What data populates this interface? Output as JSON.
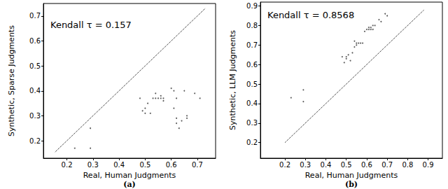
{
  "chart_data": [
    {
      "type": "scatter",
      "title": "(a)",
      "x_label": "Real, Human Judgments",
      "y_label": "Synthetic, Sparse Judgments",
      "annotations": [
        "Kendall τ = 0.157"
      ],
      "xlim": [
        0.11,
        0.77
      ],
      "ylim": [
        0.13,
        0.75
      ],
      "xticks": [
        0.2,
        0.3,
        0.4,
        0.5,
        0.6,
        0.7
      ],
      "yticks": [
        0.2,
        0.3,
        0.4,
        0.5,
        0.6,
        0.7
      ],
      "grid": false,
      "series": [
        {
          "type": "scatter",
          "marker": "circle",
          "color": "#333333",
          "x": [
            0.23,
            0.29,
            0.29,
            0.48,
            0.49,
            0.5,
            0.5,
            0.51,
            0.52,
            0.53,
            0.54,
            0.54,
            0.55,
            0.56,
            0.56,
            0.57,
            0.57,
            0.6,
            0.61,
            0.61,
            0.62,
            0.62,
            0.62,
            0.63,
            0.64,
            0.65,
            0.66,
            0.66,
            0.69,
            0.71
          ],
          "values": [
            0.17,
            0.25,
            0.17,
            0.37,
            0.32,
            0.33,
            0.31,
            0.35,
            0.31,
            0.37,
            0.39,
            0.37,
            0.37,
            0.38,
            0.37,
            0.36,
            0.37,
            0.41,
            0.4,
            0.33,
            0.37,
            0.29,
            0.27,
            0.25,
            0.28,
            0.4,
            0.3,
            0.29,
            0.39,
            0.37
          ]
        },
        {
          "type": "line",
          "line_style": "dotted",
          "color": "#000000",
          "x": [
            0.155,
            0.73
          ],
          "values": [
            0.155,
            0.73
          ]
        }
      ]
    },
    {
      "type": "scatter",
      "title": "(b)",
      "x_label": "Real, Human Judgments",
      "y_label": "Synthetic, LLM Judgments",
      "annotations": [
        "Kendall τ = 0.8568"
      ],
      "xlim": [
        0.08,
        0.97
      ],
      "ylim": [
        0.12,
        0.92
      ],
      "xticks": [
        0.2,
        0.3,
        0.4,
        0.5,
        0.6,
        0.7,
        0.8,
        0.9
      ],
      "yticks": [
        0.2,
        0.3,
        0.4,
        0.5,
        0.6,
        0.7,
        0.8,
        0.9
      ],
      "grid": false,
      "series": [
        {
          "type": "scatter",
          "marker": "circle",
          "color": "#333333",
          "x": [
            0.23,
            0.29,
            0.29,
            0.48,
            0.49,
            0.5,
            0.5,
            0.51,
            0.52,
            0.53,
            0.54,
            0.54,
            0.55,
            0.55,
            0.56,
            0.57,
            0.58,
            0.59,
            0.6,
            0.61,
            0.61,
            0.62,
            0.62,
            0.63,
            0.63,
            0.64,
            0.66,
            0.67,
            0.69,
            0.7
          ],
          "values": [
            0.43,
            0.47,
            0.41,
            0.64,
            0.61,
            0.64,
            0.63,
            0.65,
            0.62,
            0.66,
            0.69,
            0.72,
            0.7,
            0.71,
            0.71,
            0.71,
            0.71,
            0.77,
            0.78,
            0.79,
            0.78,
            0.79,
            0.78,
            0.8,
            0.78,
            0.8,
            0.83,
            0.82,
            0.86,
            0.85
          ]
        },
        {
          "type": "line",
          "line_style": "dotted",
          "color": "#000000",
          "x": [
            0.2,
            0.88
          ],
          "values": [
            0.2,
            0.88
          ]
        }
      ]
    }
  ]
}
